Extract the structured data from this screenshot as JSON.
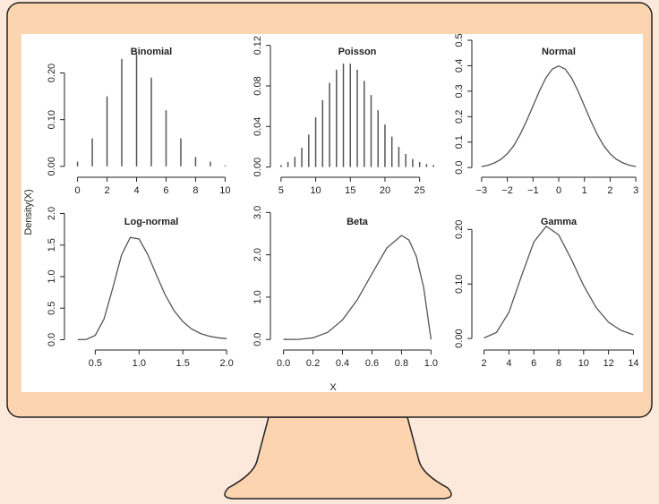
{
  "y_label": "Density(X)",
  "x_label": "X",
  "chart_data": [
    {
      "type": "bar",
      "title": "Binomial",
      "color": "#555555",
      "x": [
        0,
        1,
        2,
        3,
        4,
        5,
        6,
        7,
        8,
        9,
        10
      ],
      "values": [
        0.01,
        0.06,
        0.15,
        0.23,
        0.24,
        0.19,
        0.12,
        0.06,
        0.02,
        0.01,
        0.002
      ],
      "xlim": [
        -0.4,
        10.4
      ],
      "ylim": [
        -0.008,
        0.27
      ],
      "xticks": [
        0,
        2,
        4,
        6,
        8,
        10
      ],
      "yticks": [
        {
          "value": 0,
          "label": "0.00"
        },
        {
          "value": 0.1,
          "label": "0.10"
        },
        {
          "value": 0.2,
          "label": "0.20"
        }
      ]
    },
    {
      "type": "bar",
      "title": "Poisson",
      "color": "#555555",
      "x": [
        5,
        6,
        7,
        8,
        9,
        10,
        11,
        12,
        13,
        14,
        15,
        16,
        17,
        18,
        19,
        20,
        21,
        22,
        23,
        24,
        25,
        26,
        27
      ],
      "values": [
        0.002,
        0.005,
        0.01,
        0.019,
        0.032,
        0.049,
        0.066,
        0.083,
        0.096,
        0.102,
        0.102,
        0.096,
        0.085,
        0.071,
        0.056,
        0.042,
        0.03,
        0.02,
        0.013,
        0.008,
        0.005,
        0.003,
        0.002
      ],
      "xlim": [
        4.5,
        27.5
      ],
      "ylim": [
        -0.003,
        0.125
      ],
      "xticks": [
        5,
        10,
        15,
        20,
        25
      ],
      "yticks": [
        {
          "value": 0,
          "label": "0.00"
        },
        {
          "value": 0.04,
          "label": "0.04"
        },
        {
          "value": 0.08,
          "label": "0.08"
        },
        {
          "value": 0.12,
          "label": "0.12"
        }
      ]
    },
    {
      "type": "line",
      "title": "Normal",
      "color": "#555555",
      "x": [
        -3,
        -2.75,
        -2.5,
        -2.25,
        -2,
        -1.75,
        -1.5,
        -1.25,
        -1,
        -0.75,
        -0.5,
        -0.25,
        0,
        0.25,
        0.5,
        0.75,
        1,
        1.25,
        1.5,
        1.75,
        2,
        2.25,
        2.5,
        2.75,
        3
      ],
      "values": [
        0.004,
        0.009,
        0.018,
        0.032,
        0.054,
        0.086,
        0.13,
        0.183,
        0.242,
        0.301,
        0.352,
        0.387,
        0.399,
        0.387,
        0.352,
        0.301,
        0.242,
        0.183,
        0.13,
        0.086,
        0.054,
        0.032,
        0.018,
        0.009,
        0.004
      ],
      "xlim": [
        -3.1,
        3.1
      ],
      "ylim": [
        -0.01,
        0.5
      ],
      "xticks": [
        {
          "value": -3,
          "label": "−3"
        },
        {
          "value": -2,
          "label": "−2"
        },
        {
          "value": -1,
          "label": "−1"
        },
        0,
        1,
        2,
        3
      ],
      "yticks": [
        {
          "value": 0,
          "label": "0.0"
        },
        {
          "value": 0.1,
          "label": "0.1"
        },
        {
          "value": 0.2,
          "label": "0.2"
        },
        {
          "value": 0.3,
          "label": "0.3"
        },
        {
          "value": 0.4,
          "label": "0.4"
        },
        {
          "value": 0.5,
          "label": "0.5"
        }
      ]
    },
    {
      "type": "line",
      "title": "Log-normal",
      "color": "#555555",
      "x": [
        0.3,
        0.4,
        0.5,
        0.6,
        0.7,
        0.8,
        0.9,
        1.0,
        1.1,
        1.2,
        1.3,
        1.4,
        1.5,
        1.6,
        1.7,
        1.8,
        1.9,
        2.0
      ],
      "values": [
        0.0,
        0.005,
        0.069,
        0.329,
        0.823,
        1.34,
        1.622,
        1.596,
        1.349,
        1.02,
        0.708,
        0.461,
        0.286,
        0.17,
        0.099,
        0.056,
        0.031,
        0.017
      ],
      "xlim": [
        0.23,
        2.05
      ],
      "ylim": [
        -0.05,
        2.05
      ],
      "xticks": [
        0.5,
        {
          "value": 1,
          "label": "1.0"
        },
        1.5,
        {
          "value": 2,
          "label": "2.0"
        }
      ],
      "yticks": [
        {
          "value": 0,
          "label": "0.0"
        },
        0.5,
        {
          "value": 1,
          "label": "1.0"
        },
        1.5,
        {
          "value": 2,
          "label": "2.0"
        }
      ]
    },
    {
      "type": "line",
      "title": "Beta",
      "color": "#555555",
      "x": [
        0,
        0.1,
        0.2,
        0.3,
        0.4,
        0.5,
        0.6,
        0.7,
        0.8,
        0.85,
        0.9,
        0.95,
        1
      ],
      "values": [
        0,
        0.003,
        0.038,
        0.17,
        0.461,
        0.938,
        1.555,
        2.161,
        2.458,
        2.349,
        1.968,
        1.222,
        0
      ],
      "xlim": [
        -0.04,
        1.04
      ],
      "ylim": [
        -0.08,
        3.05
      ],
      "xticks": [
        {
          "value": 0,
          "label": "0.0"
        },
        0.2,
        0.4,
        0.6,
        0.8,
        {
          "value": 1,
          "label": "1.0"
        }
      ],
      "yticks": [
        {
          "value": 0,
          "label": "0.0"
        },
        {
          "value": 1,
          "label": "1.0"
        },
        {
          "value": 2,
          "label": "2.0"
        },
        {
          "value": 3,
          "label": "3.0"
        }
      ]
    },
    {
      "type": "line",
      "title": "Gamma",
      "color": "#555555",
      "x": [
        2,
        3,
        4,
        5,
        6,
        7,
        8,
        9,
        10,
        11,
        12,
        13,
        14
      ],
      "values": [
        0.001,
        0.011,
        0.048,
        0.114,
        0.177,
        0.206,
        0.19,
        0.146,
        0.097,
        0.057,
        0.03,
        0.015,
        0.007
      ],
      "xlim": [
        1.6,
        14.4
      ],
      "ylim": [
        -0.008,
        0.235
      ],
      "xticks": [
        2,
        4,
        6,
        8,
        10,
        12,
        14
      ],
      "yticks": [
        {
          "value": 0,
          "label": "0.00"
        },
        {
          "value": 0.1,
          "label": "0.10"
        },
        {
          "value": 0.2,
          "label": "0.20"
        }
      ]
    }
  ]
}
